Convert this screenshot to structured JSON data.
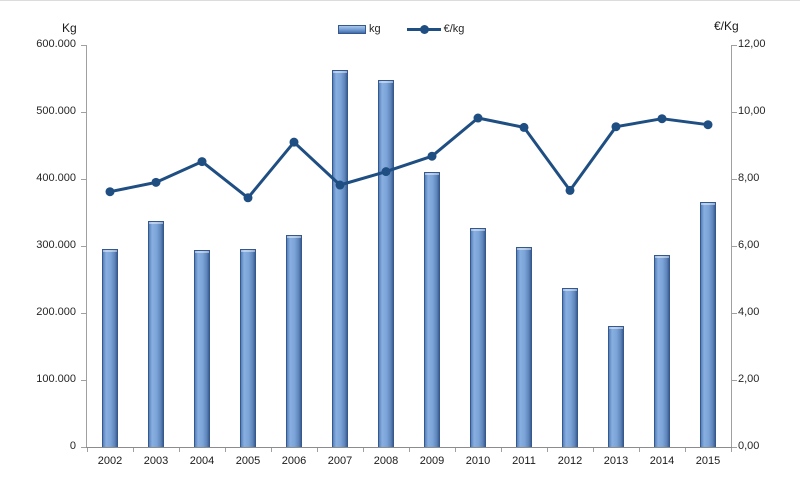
{
  "colors": {
    "bar_fill": "#7ca4d8",
    "bar_edge": "#35598f",
    "line": "#1f4e82",
    "axis_line": "#a0a0a0",
    "text": "#262626"
  },
  "legend": {
    "bar_label": "kg",
    "line_label": "€/kg"
  },
  "axes": {
    "left": {
      "title": "Kg",
      "ticks": [
        "600.000",
        "500.000",
        "400.000",
        "300.000",
        "200.000",
        "100.000",
        "0"
      ]
    },
    "right": {
      "title": "€/Kg",
      "ticks": [
        "12,00",
        "10,00",
        "8,00",
        "6,00",
        "4,00",
        "2,00",
        "0,00"
      ]
    }
  },
  "chart_data": {
    "type": "bar",
    "subtype": "combo-bar-line",
    "categories": [
      "2002",
      "2003",
      "2004",
      "2005",
      "2006",
      "2007",
      "2008",
      "2009",
      "2010",
      "2011",
      "2012",
      "2013",
      "2014",
      "2015"
    ],
    "series": [
      {
        "name": "kg",
        "type": "bar",
        "axis": "left",
        "values": [
          296000,
          337000,
          294000,
          296000,
          316000,
          562000,
          548000,
          410000,
          327000,
          298000,
          238000,
          181000,
          286000,
          365000
        ]
      },
      {
        "name": "€/kg",
        "type": "line",
        "axis": "right",
        "values": [
          7.62,
          7.9,
          8.52,
          7.44,
          9.1,
          7.82,
          8.22,
          8.68,
          9.82,
          9.54,
          7.66,
          9.56,
          9.8,
          9.62
        ]
      }
    ],
    "title": "",
    "xlabel": "",
    "left_axis": {
      "label": "Kg",
      "range": [
        0,
        600000
      ],
      "tick_step": 100000
    },
    "right_axis": {
      "label": "€/Kg",
      "range": [
        0,
        12
      ],
      "tick_step": 2
    },
    "grid": false,
    "legend_position": "top-center"
  }
}
